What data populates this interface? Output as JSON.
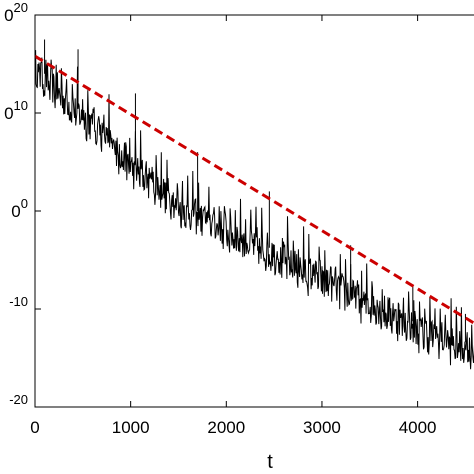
{
  "chart_data": {
    "type": "line",
    "title": "",
    "xlabel": "t",
    "ylabel": "",
    "y_scale": "log",
    "xlim": [
      0,
      4600
    ],
    "ylim_exponent": [
      -20,
      20
    ],
    "x_ticks": [
      {
        "value": 0,
        "label": "0"
      },
      {
        "value": 1000,
        "label": "1000"
      },
      {
        "value": 2000,
        "label": "2000"
      },
      {
        "value": 3000,
        "label": "3000"
      },
      {
        "value": 4000,
        "label": "4000"
      }
    ],
    "y_ticks": [
      {
        "exponent": 20,
        "base": "0",
        "sup": "20"
      },
      {
        "exponent": 10,
        "base": "0",
        "sup": "10"
      },
      {
        "exponent": 0,
        "base": "0",
        "sup": "0"
      },
      {
        "exponent": -10,
        "base": "",
        "sup": "-10"
      },
      {
        "exponent": -20,
        "base": "",
        "sup": "-20"
      }
    ],
    "grid": false,
    "legend": "none",
    "series": [
      {
        "style": "solid",
        "color": "#000000",
        "points": [
          [
            0,
            15.0
          ],
          [
            100,
            14.0
          ],
          [
            200,
            13.0
          ],
          [
            300,
            12.0
          ],
          [
            400,
            11.0
          ],
          [
            500,
            10.2
          ],
          [
            600,
            9.3
          ],
          [
            700,
            8.5
          ],
          [
            800,
            7.5
          ],
          [
            900,
            6.0
          ],
          [
            1000,
            5.0
          ],
          [
            1100,
            4.5
          ],
          [
            1200,
            3.5
          ],
          [
            1300,
            3.0
          ],
          [
            1400,
            2.0
          ],
          [
            1500,
            1.0
          ],
          [
            1600,
            0.5
          ],
          [
            1700,
            0.0
          ],
          [
            1800,
            -0.5
          ],
          [
            1900,
            -1.0
          ],
          [
            2000,
            -1.5
          ],
          [
            2200,
            -2.5
          ],
          [
            2400,
            -3.5
          ],
          [
            2600,
            -4.5
          ],
          [
            2800,
            -5.5
          ],
          [
            3000,
            -6.5
          ],
          [
            3200,
            -7.5
          ],
          [
            3400,
            -8.5
          ],
          [
            3600,
            -9.5
          ],
          [
            3800,
            -10.5
          ],
          [
            4000,
            -11.5
          ],
          [
            4200,
            -12.3
          ],
          [
            4400,
            -13.0
          ],
          [
            4600,
            -13.8
          ]
        ],
        "spikes": [
          [
            100,
            17.5
          ],
          [
            450,
            16.5
          ],
          [
            1050,
            12.0
          ],
          [
            1700,
            6.0
          ],
          [
            2450,
            2.0
          ],
          [
            3300,
            -3.5
          ],
          [
            3950,
            -7.5
          ],
          [
            4500,
            -10.5
          ]
        ]
      },
      {
        "style": "dashed",
        "color": "#cc0000",
        "points": [
          [
            0,
            15.8
          ],
          [
            4600,
            -11.5
          ]
        ]
      }
    ]
  }
}
